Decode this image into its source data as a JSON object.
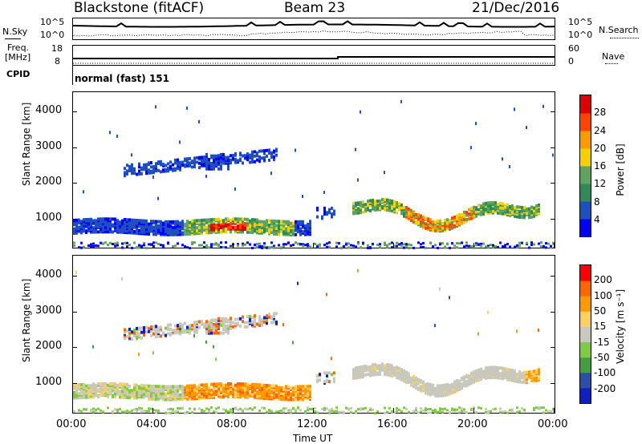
{
  "header": {
    "station": "Blackstone (fitACF)",
    "beam": "Beam 23",
    "date": "21/Dec/2016"
  },
  "status_panels": {
    "nsky_label": "N.Sky",
    "nsky_ticks": [
      "10^5",
      "10^0"
    ],
    "nsearch_label": "N.Search",
    "nsearch_ticks": [
      "10^5",
      "10^0"
    ],
    "freq_label_line1": "Freq.",
    "freq_label_line2": "[MHz]",
    "freq_ticks": [
      "18",
      "8"
    ],
    "nave_label": "Nave",
    "nave_ticks": [
      "60",
      "0"
    ],
    "cpid_label": "CPID",
    "cpid_text": "normal (fast) 151"
  },
  "colors": {
    "power": [
      "#0000ff",
      "#1f4fbf",
      "#2e8b57",
      "#5fa35f",
      "#f5d000",
      "#ff9900",
      "#ff4400",
      "#e00000"
    ],
    "velocity": [
      "#ff0000",
      "#ff6600",
      "#ff9900",
      "#ffd060",
      "#c8c8bc",
      "#80cc40",
      "#40a040",
      "#2b4fa8",
      "#1020c0"
    ]
  },
  "chart_data": [
    {
      "type": "heatmap",
      "title": "Power",
      "ylabel": "Slant Range [km]",
      "xlabel": "",
      "x_ticks": [
        "00:00",
        "04:00",
        "08:00",
        "12:00",
        "16:00",
        "20:00",
        "00:00"
      ],
      "y_ticks": [
        "1000",
        "2000",
        "3000",
        "4000"
      ],
      "ylim": [
        180,
        4550
      ],
      "xlim_hours": [
        0,
        24
      ],
      "colorbar_label": "Power [dB]",
      "colorbar_ticks": [
        "4",
        "8",
        "12",
        "16",
        "20",
        "24",
        "28"
      ],
      "colorbar_range": [
        0,
        30
      ]
    },
    {
      "type": "heatmap",
      "title": "Velocity",
      "ylabel": "Slant Range [km]",
      "xlabel": "Time UT",
      "x_ticks": [
        "00:00",
        "04:00",
        "08:00",
        "12:00",
        "16:00",
        "20:00",
        "00:00"
      ],
      "y_ticks": [
        "1000",
        "2000",
        "3000",
        "4000"
      ],
      "ylim": [
        180,
        4550
      ],
      "xlim_hours": [
        0,
        24
      ],
      "colorbar_label": "Velocity [m s⁻¹]",
      "colorbar_ticks": [
        "200",
        "100",
        "50",
        "15",
        "-15",
        "-50",
        "-100",
        "-200"
      ],
      "colorbar_range": [
        -250,
        250
      ]
    }
  ]
}
